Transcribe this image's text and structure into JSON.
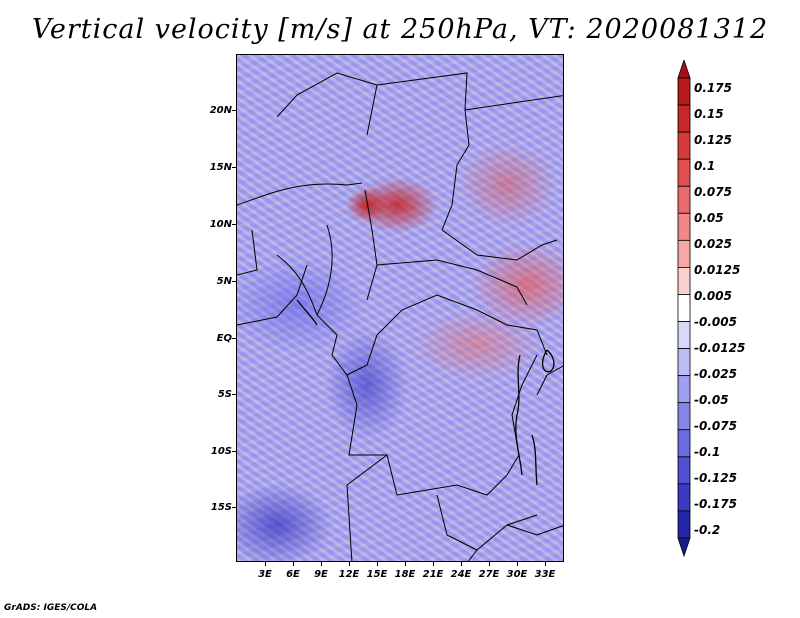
{
  "title": "Vertical velocity [m/s] at 250hPa, VT: 2020081312",
  "credit": "GrADS: IGES/COLA",
  "latitude_labels": [
    "20N",
    "15N",
    "10N",
    "5N",
    "EQ",
    "5S",
    "10S",
    "15S"
  ],
  "longitude_labels": [
    "3E",
    "6E",
    "9E",
    "12E",
    "15E",
    "18E",
    "21E",
    "24E",
    "27E",
    "30E",
    "33E"
  ],
  "colorbar": {
    "labels": [
      "0.175",
      "0.15",
      "0.125",
      "0.1",
      "0.075",
      "0.05",
      "0.025",
      "0.0125",
      "0.005",
      "-0.005",
      "-0.0125",
      "-0.025",
      "-0.05",
      "-0.075",
      "-0.1",
      "-0.125",
      "-0.175",
      "-0.2"
    ],
    "colors": [
      "#a50f15",
      "#b51c1c",
      "#c62828",
      "#d43c3c",
      "#e05050",
      "#e86a6a",
      "#f08888",
      "#f5a8a8",
      "#fad0d0",
      "#ffffff",
      "#d8d8fa",
      "#bcbcf5",
      "#9f9ff0",
      "#8585e8",
      "#6b6be0",
      "#5050d0",
      "#3a3ac0",
      "#2525a8",
      "#1a1a90"
    ]
  }
}
